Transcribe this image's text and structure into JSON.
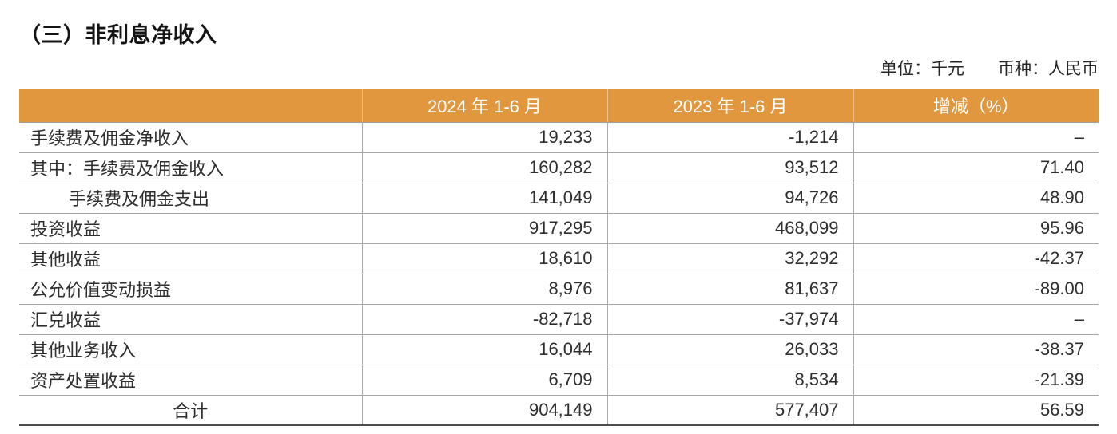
{
  "page": {
    "title": "（三）非利息净收入",
    "unit_note": "单位：千元",
    "currency_note": "币种：人民币"
  },
  "colors": {
    "header_bg": "#E0973E",
    "header_text": "#FFFFFF",
    "row_line": "#A6A6A6",
    "bottom_line": "#4D4D4D",
    "body_text": "#2E2E2E"
  },
  "table": {
    "headers": [
      "",
      "2024 年 1-6 月",
      "2023 年 1-6 月",
      "增减（%）"
    ],
    "rows": [
      {
        "label": "手续费及佣金净收入",
        "y2024": "19,233",
        "y2023": "-1,214",
        "change": "–"
      },
      {
        "label": "其中：手续费及佣金收入",
        "y2024": "160,282",
        "y2023": "93,512",
        "change": "71.40"
      },
      {
        "label": "手续费及佣金支出",
        "y2024": "141,049",
        "y2023": "94,726",
        "change": "48.90"
      },
      {
        "label": "投资收益",
        "y2024": "917,295",
        "y2023": "468,099",
        "change": "95.96"
      },
      {
        "label": "其他收益",
        "y2024": "18,610",
        "y2023": "32,292",
        "change": "-42.37"
      },
      {
        "label": "公允价值变动损益",
        "y2024": "8,976",
        "y2023": "81,637",
        "change": "-89.00"
      },
      {
        "label": "汇兑收益",
        "y2024": "-82,718",
        "y2023": "-37,974",
        "change": "–"
      },
      {
        "label": "其他业务收入",
        "y2024": "16,044",
        "y2023": "26,033",
        "change": "-38.37"
      },
      {
        "label": "资产处置收益",
        "y2024": "6,709",
        "y2023": "8,534",
        "change": "-21.39"
      },
      {
        "label": "合计",
        "y2024": "904,149",
        "y2023": "577,407",
        "change": "56.59"
      }
    ]
  }
}
